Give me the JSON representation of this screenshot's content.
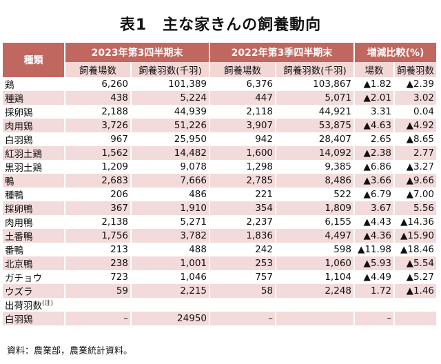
{
  "title": "表1　主な家きんの飼養動向",
  "header": {
    "kind": "種類",
    "group_2023": "2023年第3四半期末",
    "group_2022": "2022年第3季四半期末",
    "group_change": "増減比較(%)",
    "farms": "飼養場数",
    "birds": "飼養羽数(千羽)",
    "change_farms": "場数",
    "change_birds": "飼養羽数"
  },
  "rows": [
    {
      "name": "鶏",
      "level": 0,
      "f2023": "6,260",
      "b2023": "101,389",
      "f2022": "6,376",
      "b2022": "103,867",
      "cf": "▲1.82",
      "cb": "▲2.39"
    },
    {
      "name": "種鶏",
      "level": 1,
      "f2023": "438",
      "b2023": "5,224",
      "f2022": "447",
      "b2022": "5,071",
      "cf": "▲2.01",
      "cb": "3.02"
    },
    {
      "name": "採卵鶏",
      "level": 1,
      "f2023": "2,188",
      "b2023": "44,939",
      "f2022": "2,118",
      "b2022": "44,921",
      "cf": "3.31",
      "cb": "0.04"
    },
    {
      "name": "肉用鶏",
      "level": 1,
      "f2023": "3,726",
      "b2023": "51,226",
      "f2022": "3,907",
      "b2022": "53,875",
      "cf": "▲4.63",
      "cb": "▲4.92"
    },
    {
      "name": "白羽鶏",
      "level": 2,
      "f2023": "967",
      "b2023": "25,950",
      "f2022": "942",
      "b2022": "28,407",
      "cf": "2.65",
      "cb": "▲8.65"
    },
    {
      "name": "紅羽土鶏",
      "level": 2,
      "f2023": "1,562",
      "b2023": "14,482",
      "f2022": "1,600",
      "b2022": "14,092",
      "cf": "▲2.38",
      "cb": "2.77"
    },
    {
      "name": "黒羽土鶏",
      "level": 2,
      "f2023": "1,209",
      "b2023": "9,078",
      "f2022": "1,298",
      "b2022": "9,385",
      "cf": "▲6.86",
      "cb": "▲3.27"
    },
    {
      "name": "鴨",
      "level": 0,
      "f2023": "2,683",
      "b2023": "7,666",
      "f2022": "2,785",
      "b2022": "8,486",
      "cf": "▲3.66",
      "cb": "▲9.66"
    },
    {
      "name": "種鴨",
      "level": 1,
      "f2023": "206",
      "b2023": "486",
      "f2022": "221",
      "b2022": "522",
      "cf": "▲6.79",
      "cb": "▲7.00"
    },
    {
      "name": "採卵鴨",
      "level": 1,
      "f2023": "367",
      "b2023": "1,910",
      "f2022": "354",
      "b2022": "1,809",
      "cf": "3.67",
      "cb": "5.56"
    },
    {
      "name": "肉用鴨",
      "level": 1,
      "f2023": "2,138",
      "b2023": "5,271",
      "f2022": "2,237",
      "b2022": "6,155",
      "cf": "▲4.43",
      "cb": "▲14.36"
    },
    {
      "name": "土番鴨",
      "level": 2,
      "f2023": "1,756",
      "b2023": "3,782",
      "f2022": "1,836",
      "b2022": "4,497",
      "cf": "▲4.36",
      "cb": "▲15.90"
    },
    {
      "name": "番鴨",
      "level": 2,
      "f2023": "213",
      "b2023": "488",
      "f2022": "242",
      "b2022": "598",
      "cf": "▲11.98",
      "cb": "▲18.46"
    },
    {
      "name": "北京鴨",
      "level": 2,
      "f2023": "238",
      "b2023": "1,001",
      "f2022": "253",
      "b2022": "1,060",
      "cf": "▲5.93",
      "cb": "▲5.54"
    },
    {
      "name": "ガチョウ",
      "level": 0,
      "f2023": "723",
      "b2023": "1,046",
      "f2022": "757",
      "b2022": "1,104",
      "cf": "▲4.49",
      "cb": "▲5.27"
    },
    {
      "name": "ウズラ",
      "level": 0,
      "f2023": "59",
      "b2023": "2,215",
      "f2022": "58",
      "b2022": "2,248",
      "cf": "1.72",
      "cb": "▲1.46"
    },
    {
      "name": "出荷羽数",
      "note": "(注)",
      "level": 0,
      "f2023": "",
      "b2023": "",
      "f2022": "",
      "b2022": "",
      "cf": "",
      "cb": ""
    },
    {
      "name": "白羽鶏",
      "level": 1,
      "f2023": "–",
      "b2023": "24950",
      "f2022": "–",
      "b2022": "",
      "cf": "–",
      "cb": ""
    }
  ],
  "source": "資料：農業部，農業統計資料。"
}
